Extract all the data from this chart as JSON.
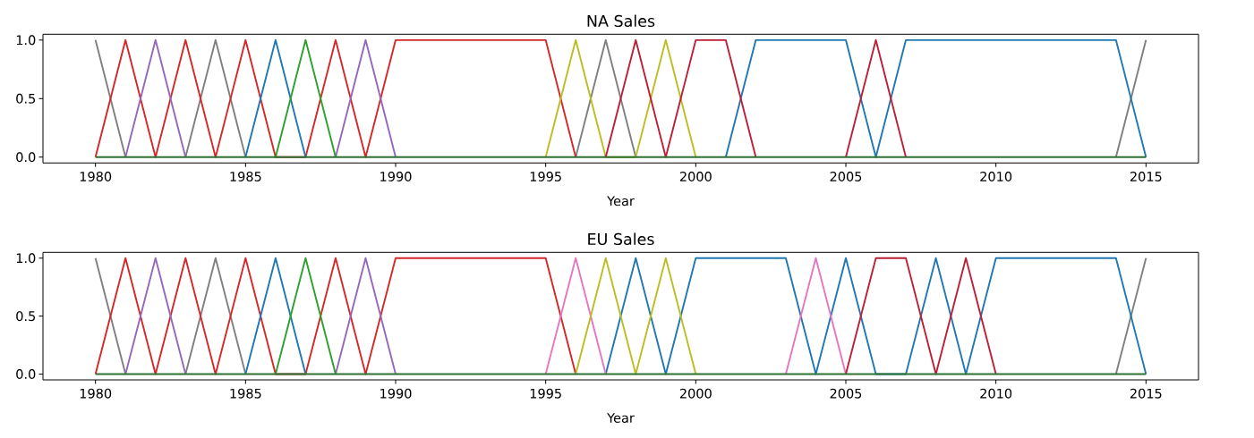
{
  "chart_data": [
    {
      "type": "line",
      "title": "NA Sales",
      "xlabel": "Year",
      "x": [
        1980,
        1981,
        1982,
        1983,
        1984,
        1985,
        1986,
        1987,
        1988,
        1989,
        1990,
        1991,
        1992,
        1993,
        1994,
        1995,
        1996,
        1997,
        1998,
        1999,
        2000,
        2001,
        2002,
        2003,
        2004,
        2005,
        2006,
        2007,
        2008,
        2009,
        2010,
        2011,
        2012,
        2013,
        2014,
        2015
      ],
      "xlim": [
        1978.25,
        2016.75
      ],
      "xticks": [
        1980,
        1985,
        1990,
        1995,
        2000,
        2005,
        2010,
        2015
      ],
      "ylim": [
        -0.05,
        1.05
      ],
      "yticks": [
        {
          "value": 0,
          "label": "0.0"
        },
        {
          "value": 0.5,
          "label": "0.5"
        },
        {
          "value": 1,
          "label": "1.0"
        }
      ],
      "series": [
        {
          "color": "#7f7f7f",
          "values": [
            1,
            0,
            null,
            0,
            1,
            0,
            null,
            null,
            null,
            null,
            null,
            null,
            null,
            null,
            null,
            null,
            0,
            1,
            0,
            null,
            null,
            null,
            null,
            null,
            null,
            null,
            null,
            null,
            null,
            null,
            null,
            null,
            null,
            null,
            0,
            1
          ]
        },
        {
          "color": "#d62728",
          "values": [
            0,
            1,
            0,
            1,
            0,
            1,
            0,
            0,
            1,
            0,
            1,
            1,
            1,
            1,
            1,
            1,
            0,
            null,
            null,
            null,
            null,
            null,
            null,
            null,
            null,
            null,
            null,
            null,
            null,
            null,
            null,
            null,
            null,
            null,
            null,
            null
          ]
        },
        {
          "color": "#9467bd",
          "values": [
            null,
            0,
            1,
            0,
            null,
            null,
            null,
            null,
            0,
            1,
            0,
            null,
            null,
            null,
            null,
            null,
            null,
            null,
            null,
            null,
            null,
            null,
            null,
            null,
            null,
            null,
            null,
            null,
            null,
            null,
            null,
            null,
            null,
            null,
            null,
            null
          ]
        },
        {
          "color": "#1f77b4",
          "values": [
            null,
            null,
            null,
            null,
            null,
            0,
            1,
            0,
            null,
            null,
            null,
            null,
            null,
            null,
            null,
            null,
            null,
            null,
            null,
            null,
            null,
            0,
            1,
            1,
            1,
            1,
            0,
            1,
            1,
            1,
            1,
            1,
            1,
            1,
            1,
            0
          ]
        },
        {
          "color": "#bcbd22",
          "values": [
            null,
            null,
            null,
            null,
            null,
            null,
            null,
            null,
            null,
            null,
            null,
            null,
            null,
            null,
            null,
            0,
            1,
            0,
            0,
            1,
            0,
            null,
            null,
            null,
            null,
            null,
            null,
            null,
            null,
            null,
            null,
            null,
            null,
            null,
            null,
            null
          ]
        },
        {
          "color": "#bc1f36",
          "values": [
            null,
            null,
            null,
            null,
            null,
            null,
            null,
            null,
            null,
            null,
            null,
            null,
            null,
            null,
            null,
            null,
            null,
            0,
            1,
            0,
            1,
            1,
            0,
            null,
            null,
            0,
            1,
            0,
            null,
            null,
            null,
            null,
            null,
            null,
            null,
            null
          ]
        },
        {
          "color": "#2ca02c",
          "values": [
            null,
            null,
            null,
            null,
            null,
            null,
            0,
            1,
            0,
            null,
            null,
            null,
            null,
            null,
            null,
            null,
            null,
            null,
            null,
            null,
            null,
            null,
            null,
            null,
            null,
            null,
            null,
            null,
            null,
            null,
            null,
            null,
            null,
            null,
            null,
            null
          ]
        },
        {
          "color": "#2e7032",
          "values": [
            0,
            0,
            0,
            0,
            0,
            0,
            0,
            0,
            0,
            0,
            0,
            0,
            0,
            0,
            0,
            0,
            0,
            0,
            0,
            0,
            0,
            0,
            0,
            0,
            0,
            0,
            0,
            0,
            0,
            0,
            0,
            0,
            0,
            0,
            0,
            0
          ]
        }
      ]
    },
    {
      "type": "line",
      "title": "EU Sales",
      "xlabel": "Year",
      "x": [
        1980,
        1981,
        1982,
        1983,
        1984,
        1985,
        1986,
        1987,
        1988,
        1989,
        1990,
        1991,
        1992,
        1993,
        1994,
        1995,
        1996,
        1997,
        1998,
        1999,
        2000,
        2001,
        2002,
        2003,
        2004,
        2005,
        2006,
        2007,
        2008,
        2009,
        2010,
        2011,
        2012,
        2013,
        2014,
        2015
      ],
      "xlim": [
        1978.25,
        2016.75
      ],
      "xticks": [
        1980,
        1985,
        1990,
        1995,
        2000,
        2005,
        2010,
        2015
      ],
      "ylim": [
        -0.05,
        1.05
      ],
      "yticks": [
        {
          "value": 0,
          "label": "0.0"
        },
        {
          "value": 0.5,
          "label": "0.5"
        },
        {
          "value": 1,
          "label": "1.0"
        }
      ],
      "series": [
        {
          "color": "#7f7f7f",
          "values": [
            1,
            0,
            null,
            0,
            1,
            0,
            null,
            null,
            null,
            null,
            null,
            null,
            null,
            null,
            null,
            null,
            null,
            null,
            null,
            null,
            null,
            null,
            null,
            null,
            null,
            null,
            null,
            null,
            null,
            null,
            null,
            null,
            null,
            null,
            0,
            1
          ]
        },
        {
          "color": "#d62728",
          "values": [
            0,
            1,
            0,
            1,
            0,
            1,
            0,
            0,
            1,
            0,
            1,
            1,
            1,
            1,
            1,
            1,
            0,
            null,
            null,
            null,
            null,
            null,
            null,
            null,
            null,
            null,
            null,
            null,
            null,
            null,
            null,
            null,
            null,
            null,
            null,
            null
          ]
        },
        {
          "color": "#9467bd",
          "values": [
            null,
            0,
            1,
            0,
            null,
            null,
            null,
            null,
            0,
            1,
            0,
            null,
            null,
            null,
            null,
            null,
            null,
            null,
            null,
            null,
            null,
            null,
            null,
            null,
            null,
            null,
            null,
            null,
            null,
            null,
            null,
            null,
            null,
            null,
            null,
            null
          ]
        },
        {
          "color": "#1f77b4",
          "values": [
            null,
            null,
            null,
            null,
            null,
            0,
            1,
            0,
            null,
            null,
            null,
            null,
            null,
            null,
            null,
            null,
            null,
            0,
            1,
            0,
            1,
            1,
            1,
            1,
            0,
            1,
            0,
            0,
            1,
            0,
            1,
            1,
            1,
            1,
            1,
            0
          ]
        },
        {
          "color": "#e377c2",
          "values": [
            null,
            null,
            null,
            null,
            null,
            null,
            null,
            null,
            null,
            null,
            null,
            null,
            null,
            null,
            null,
            0,
            1,
            0,
            null,
            null,
            null,
            null,
            null,
            0,
            1,
            0,
            null,
            null,
            null,
            null,
            null,
            null,
            null,
            null,
            null,
            null
          ]
        },
        {
          "color": "#bcbd22",
          "values": [
            null,
            null,
            null,
            null,
            null,
            null,
            null,
            null,
            null,
            null,
            null,
            null,
            null,
            null,
            null,
            null,
            0,
            1,
            0,
            1,
            0,
            null,
            null,
            null,
            null,
            null,
            null,
            null,
            null,
            null,
            null,
            null,
            null,
            null,
            null,
            null
          ]
        },
        {
          "color": "#bc1f36",
          "values": [
            null,
            null,
            null,
            null,
            null,
            null,
            null,
            null,
            null,
            null,
            null,
            null,
            null,
            null,
            null,
            null,
            null,
            null,
            null,
            null,
            null,
            null,
            null,
            null,
            null,
            0,
            1,
            1,
            0,
            1,
            0,
            null,
            null,
            null,
            null,
            null
          ]
        },
        {
          "color": "#2ca02c",
          "values": [
            null,
            null,
            null,
            null,
            null,
            null,
            0,
            1,
            0,
            null,
            null,
            null,
            null,
            null,
            null,
            null,
            null,
            null,
            null,
            null,
            null,
            null,
            null,
            null,
            null,
            null,
            null,
            null,
            null,
            null,
            null,
            null,
            null,
            null,
            null,
            null
          ]
        },
        {
          "color": "#2e7032",
          "values": [
            0,
            0,
            0,
            0,
            0,
            0,
            0,
            0,
            0,
            0,
            0,
            0,
            0,
            0,
            0,
            0,
            0,
            0,
            0,
            0,
            0,
            0,
            0,
            0,
            0,
            0,
            0,
            0,
            0,
            0,
            0,
            0,
            0,
            0,
            0,
            0
          ]
        }
      ]
    }
  ]
}
